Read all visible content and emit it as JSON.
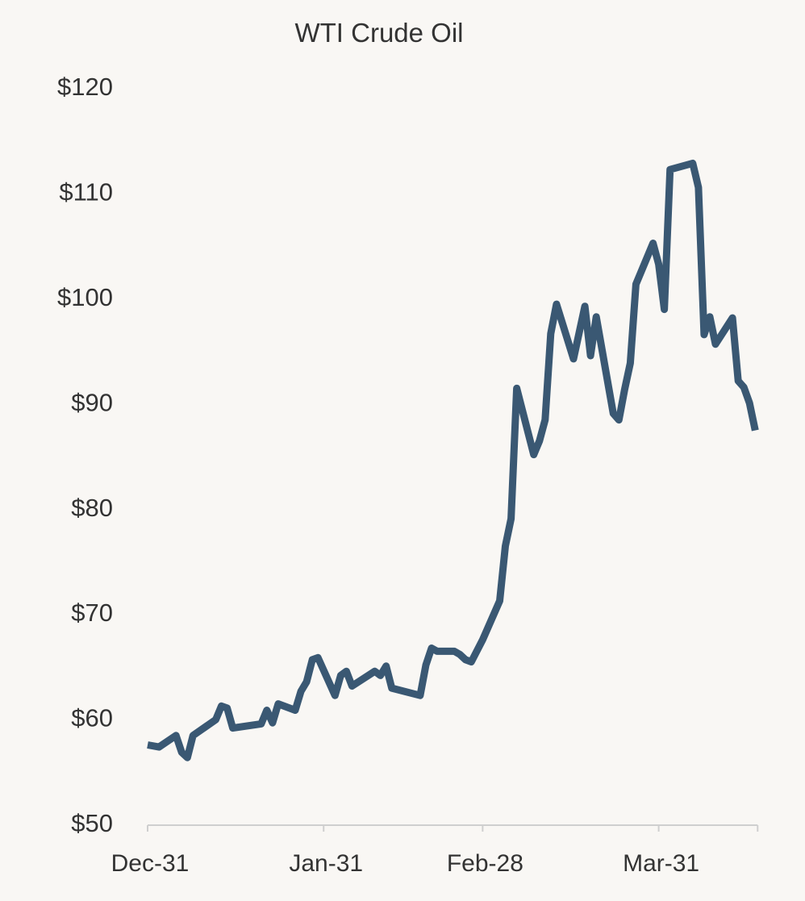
{
  "chart_data": {
    "type": "line",
    "title": "WTI Crude Oil",
    "xlabel": "",
    "ylabel": "",
    "ylim": [
      50,
      120
    ],
    "yticks": [
      "$50",
      "$60",
      "$70",
      "$80",
      "$90",
      "$100",
      "$110",
      "$120"
    ],
    "ytick_values": [
      50,
      60,
      70,
      80,
      90,
      100,
      110,
      120
    ],
    "xticks": [
      "Dec-31",
      "Jan-31",
      "Feb-28",
      "Mar-31"
    ],
    "xlim": [
      "Dec-31",
      "Apr-17"
    ],
    "grid": false,
    "legend": "none",
    "line_color": "#3a5873",
    "series": [
      {
        "x": [
          "Dec-31",
          "Jan-02",
          "Jan-05",
          "Jan-06",
          "Jan-07",
          "Jan-08",
          "Jan-12",
          "Jan-13",
          "Jan-14",
          "Jan-15",
          "Jan-20",
          "Jan-21",
          "Jan-22",
          "Jan-23",
          "Jan-26",
          "Jan-27",
          "Jan-28",
          "Jan-29",
          "Jan-30",
          "Feb-02",
          "Feb-03",
          "Feb-04",
          "Feb-05",
          "Feb-09",
          "Feb-10",
          "Feb-11",
          "Feb-12",
          "Feb-17",
          "Feb-18",
          "Feb-19",
          "Feb-20",
          "Feb-23",
          "Feb-24",
          "Feb-25",
          "Feb-26",
          "Feb-28",
          "Mar-03",
          "Mar-04",
          "Mar-05",
          "Mar-06",
          "Mar-09",
          "Mar-10",
          "Mar-11",
          "Mar-12",
          "Mar-13",
          "Mar-16",
          "Mar-18",
          "Mar-19",
          "Mar-20",
          "Mar-23",
          "Mar-24",
          "Mar-25",
          "Mar-26",
          "Mar-27",
          "Mar-30",
          "Mar-31",
          "Apr-01",
          "Apr-02",
          "Apr-06",
          "Apr-07",
          "Apr-08",
          "Apr-09",
          "Apr-10",
          "Apr-13",
          "Apr-14",
          "Apr-15",
          "Apr-16",
          "Apr-17"
        ],
        "values": [
          57.4,
          57.2,
          58.3,
          56.7,
          56.2,
          58.3,
          59.8,
          61.1,
          60.9,
          59.0,
          59.4,
          60.7,
          59.5,
          61.3,
          60.7,
          62.5,
          63.4,
          65.5,
          65.7,
          62.1,
          64.0,
          64.4,
          63.0,
          64.4,
          64.0,
          64.9,
          62.8,
          62.1,
          65.0,
          66.6,
          66.3,
          66.3,
          66.0,
          65.5,
          65.3,
          67.4,
          71.1,
          76.3,
          78.9,
          91.3,
          85.0,
          86.3,
          88.3,
          96.5,
          99.3,
          94.1,
          99.1,
          94.4,
          98.1,
          88.9,
          88.3,
          91.2,
          93.7,
          101.2,
          105.1,
          103.1,
          98.8,
          112.1,
          112.7,
          110.4,
          96.4,
          98.1,
          95.5,
          98.0,
          92.0,
          91.4,
          89.9,
          87.3
        ]
      }
    ]
  }
}
